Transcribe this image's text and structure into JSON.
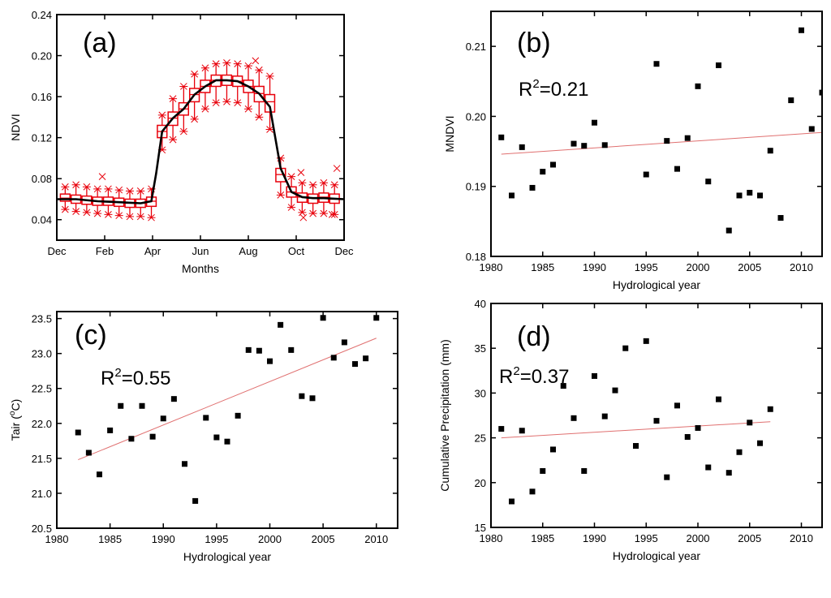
{
  "colors": {
    "frame": "#000000",
    "box": "#e8000b",
    "fit": "#e07070",
    "point": "#000000"
  },
  "chart_data": [
    {
      "id": "a",
      "type": "box",
      "panel_label": "(a)",
      "xlabel": "Months",
      "ylabel": "NDVI",
      "xlim": [
        0,
        12
      ],
      "ylim": [
        0.02,
        0.24
      ],
      "xticks": [
        0,
        2,
        4,
        6,
        8,
        10,
        12
      ],
      "xtick_labels": [
        "Dec",
        "Feb",
        "Apr",
        "Jun",
        "Aug",
        "Oct",
        "Dec"
      ],
      "yticks": [
        0.04,
        0.08,
        0.12,
        0.16,
        0.2,
        0.24
      ],
      "ytick_labels": [
        "0.04",
        "0.08",
        "0.12",
        "0.16",
        "0.20",
        "0.24"
      ],
      "boxes": [
        {
          "x": 0.35,
          "q1": 0.058,
          "q3": 0.065,
          "median": 0.061,
          "min": 0.05,
          "max": 0.072
        },
        {
          "x": 0.8,
          "q1": 0.056,
          "q3": 0.064,
          "median": 0.06,
          "min": 0.048,
          "max": 0.074
        },
        {
          "x": 1.25,
          "q1": 0.055,
          "q3": 0.063,
          "median": 0.059,
          "min": 0.047,
          "max": 0.072
        },
        {
          "x": 1.7,
          "q1": 0.054,
          "q3": 0.062,
          "median": 0.058,
          "min": 0.046,
          "max": 0.07
        },
        {
          "x": 2.15,
          "q1": 0.054,
          "q3": 0.062,
          "median": 0.058,
          "min": 0.045,
          "max": 0.07
        },
        {
          "x": 2.6,
          "q1": 0.053,
          "q3": 0.061,
          "median": 0.057,
          "min": 0.044,
          "max": 0.069
        },
        {
          "x": 3.05,
          "q1": 0.052,
          "q3": 0.06,
          "median": 0.056,
          "min": 0.043,
          "max": 0.068
        },
        {
          "x": 3.5,
          "q1": 0.052,
          "q3": 0.06,
          "median": 0.056,
          "min": 0.043,
          "max": 0.068
        },
        {
          "x": 3.95,
          "q1": 0.053,
          "q3": 0.062,
          "median": 0.058,
          "min": 0.042,
          "max": 0.07
        },
        {
          "x": 4.4,
          "q1": 0.12,
          "q3": 0.132,
          "median": 0.126,
          "min": 0.108,
          "max": 0.142
        },
        {
          "x": 4.85,
          "q1": 0.132,
          "q3": 0.145,
          "median": 0.139,
          "min": 0.118,
          "max": 0.158
        },
        {
          "x": 5.3,
          "q1": 0.142,
          "q3": 0.154,
          "median": 0.148,
          "min": 0.126,
          "max": 0.17
        },
        {
          "x": 5.75,
          "q1": 0.155,
          "q3": 0.168,
          "median": 0.162,
          "min": 0.138,
          "max": 0.182
        },
        {
          "x": 6.2,
          "q1": 0.164,
          "q3": 0.176,
          "median": 0.17,
          "min": 0.148,
          "max": 0.188
        },
        {
          "x": 6.65,
          "q1": 0.17,
          "q3": 0.181,
          "median": 0.176,
          "min": 0.154,
          "max": 0.192
        },
        {
          "x": 7.1,
          "q1": 0.171,
          "q3": 0.181,
          "median": 0.176,
          "min": 0.155,
          "max": 0.193
        },
        {
          "x": 7.55,
          "q1": 0.17,
          "q3": 0.18,
          "median": 0.175,
          "min": 0.154,
          "max": 0.192
        },
        {
          "x": 8.0,
          "q1": 0.164,
          "q3": 0.176,
          "median": 0.17,
          "min": 0.148,
          "max": 0.19
        },
        {
          "x": 8.45,
          "q1": 0.155,
          "q3": 0.17,
          "median": 0.163,
          "min": 0.14,
          "max": 0.186
        },
        {
          "x": 8.9,
          "q1": 0.145,
          "q3": 0.162,
          "median": 0.155,
          "min": 0.128,
          "max": 0.18
        },
        {
          "x": 9.35,
          "q1": 0.077,
          "q3": 0.09,
          "median": 0.084,
          "min": 0.064,
          "max": 0.1
        },
        {
          "x": 9.8,
          "q1": 0.062,
          "q3": 0.072,
          "median": 0.067,
          "min": 0.052,
          "max": 0.082
        },
        {
          "x": 10.25,
          "q1": 0.057,
          "q3": 0.066,
          "median": 0.062,
          "min": 0.047,
          "max": 0.076
        },
        {
          "x": 10.7,
          "q1": 0.056,
          "q3": 0.065,
          "median": 0.061,
          "min": 0.046,
          "max": 0.074
        },
        {
          "x": 11.15,
          "q1": 0.057,
          "q3": 0.066,
          "median": 0.062,
          "min": 0.046,
          "max": 0.076
        },
        {
          "x": 11.6,
          "q1": 0.056,
          "q3": 0.065,
          "median": 0.06,
          "min": 0.045,
          "max": 0.074
        }
      ],
      "outliers": [
        [
          1.9,
          0.082
        ],
        [
          10.2,
          0.086
        ],
        [
          11.7,
          0.09
        ],
        [
          8.3,
          0.195
        ],
        [
          10.3,
          0.042
        ],
        [
          11.5,
          0.045
        ]
      ],
      "mean_line": [
        [
          0.0,
          0.06
        ],
        [
          0.8,
          0.06
        ],
        [
          1.7,
          0.058
        ],
        [
          2.6,
          0.057
        ],
        [
          3.5,
          0.056
        ],
        [
          3.95,
          0.058
        ],
        [
          4.15,
          0.085
        ],
        [
          4.4,
          0.126
        ],
        [
          4.85,
          0.139
        ],
        [
          5.3,
          0.148
        ],
        [
          5.75,
          0.162
        ],
        [
          6.2,
          0.17
        ],
        [
          6.65,
          0.176
        ],
        [
          7.1,
          0.176
        ],
        [
          7.55,
          0.175
        ],
        [
          8.0,
          0.17
        ],
        [
          8.45,
          0.163
        ],
        [
          8.9,
          0.15
        ],
        [
          9.35,
          0.09
        ],
        [
          9.8,
          0.067
        ],
        [
          10.25,
          0.062
        ],
        [
          10.7,
          0.061
        ],
        [
          11.15,
          0.061
        ],
        [
          12.0,
          0.06
        ]
      ]
    },
    {
      "id": "b",
      "type": "scatter",
      "panel_label": "(b)",
      "r2_base": "R",
      "r2_exp": "2",
      "r2_value": "=0.21",
      "xlabel": "Hydrological year",
      "ylabel": "MNDVI",
      "xlim": [
        1980,
        2012
      ],
      "ylim": [
        0.18,
        0.215
      ],
      "xticks": [
        1980,
        1985,
        1990,
        1995,
        2000,
        2005,
        2010
      ],
      "xtick_labels": [
        "1980",
        "1985",
        "1990",
        "1995",
        "2000",
        "2005",
        "2010"
      ],
      "yticks": [
        0.18,
        0.19,
        0.2,
        0.21
      ],
      "ytick_labels": [
        "0.18",
        "0.19",
        "0.20",
        "0.21"
      ],
      "points": [
        [
          1981,
          0.197
        ],
        [
          1982,
          0.1887
        ],
        [
          1983,
          0.1956
        ],
        [
          1984,
          0.1898
        ],
        [
          1985,
          0.1921
        ],
        [
          1986,
          0.1931
        ],
        [
          1988,
          0.1961
        ],
        [
          1989,
          0.1958
        ],
        [
          1990,
          0.1991
        ],
        [
          1991,
          0.1959
        ],
        [
          1995,
          0.1917
        ],
        [
          1996,
          0.2075
        ],
        [
          1997,
          0.1965
        ],
        [
          1998,
          0.1925
        ],
        [
          1999,
          0.1969
        ],
        [
          2000,
          0.2043
        ],
        [
          2001,
          0.1907
        ],
        [
          2002,
          0.2073
        ],
        [
          2003,
          0.1837
        ],
        [
          2004,
          0.1887
        ],
        [
          2005,
          0.1891
        ],
        [
          2006,
          0.1887
        ],
        [
          2007,
          0.1951
        ],
        [
          2008,
          0.1855
        ],
        [
          2009,
          0.2023
        ],
        [
          2010,
          0.2123
        ],
        [
          2011,
          0.1982
        ],
        [
          2012,
          0.2034
        ]
      ],
      "fit": [
        [
          1981,
          0.1946
        ],
        [
          2012,
          0.1977
        ]
      ]
    },
    {
      "id": "c",
      "type": "scatter",
      "panel_label": "(c)",
      "r2_base": "R",
      "r2_exp": "2",
      "r2_value": "=0.55",
      "xlabel": "Hydrological year",
      "ylabel": "Tair (°C)",
      "ylabel_base": "Tair (",
      "ylabel_sup": "o",
      "ylabel_end": "C)",
      "xlim": [
        1980,
        2012
      ],
      "ylim": [
        20.5,
        23.6
      ],
      "xticks": [
        1980,
        1985,
        1990,
        1995,
        2000,
        2005,
        2010
      ],
      "xtick_labels": [
        "1980",
        "1985",
        "1990",
        "1995",
        "2000",
        "2005",
        "2010"
      ],
      "yticks": [
        20.5,
        21.0,
        21.5,
        22.0,
        22.5,
        23.0,
        23.5
      ],
      "ytick_labels": [
        "20.5",
        "21.0",
        "21.5",
        "22.0",
        "22.5",
        "23.0",
        "23.5"
      ],
      "points": [
        [
          1982,
          21.87
        ],
        [
          1983,
          21.58
        ],
        [
          1984,
          21.27
        ],
        [
          1985,
          21.9
        ],
        [
          1986,
          22.25
        ],
        [
          1987,
          21.78
        ],
        [
          1988,
          22.25
        ],
        [
          1989,
          21.81
        ],
        [
          1990,
          22.07
        ],
        [
          1991,
          22.35
        ],
        [
          1992,
          21.42
        ],
        [
          1993,
          20.89
        ],
        [
          1994,
          22.08
        ],
        [
          1995,
          21.8
        ],
        [
          1996,
          21.74
        ],
        [
          1997,
          22.11
        ],
        [
          1998,
          23.05
        ],
        [
          1999,
          23.04
        ],
        [
          2000,
          22.89
        ],
        [
          2001,
          23.41
        ],
        [
          2002,
          23.05
        ],
        [
          2003,
          22.39
        ],
        [
          2004,
          22.36
        ],
        [
          2005,
          23.51
        ],
        [
          2006,
          22.94
        ],
        [
          2007,
          23.16
        ],
        [
          2008,
          22.85
        ],
        [
          2009,
          22.93
        ],
        [
          2010,
          23.51
        ]
      ],
      "fit": [
        [
          1982,
          21.48
        ],
        [
          2010,
          23.22
        ]
      ]
    },
    {
      "id": "d",
      "type": "scatter",
      "panel_label": "(d)",
      "r2_base": "R",
      "r2_exp": "2",
      "r2_value": "=0.37",
      "xlabel": "Hydrological year",
      "ylabel": "Cumulative Precipitation (mm)",
      "xlim": [
        1980,
        2012
      ],
      "ylim": [
        15,
        40
      ],
      "xticks": [
        1980,
        1985,
        1990,
        1995,
        2000,
        2005,
        2010
      ],
      "xtick_labels": [
        "1980",
        "1985",
        "1990",
        "1995",
        "2000",
        "2005",
        "2010"
      ],
      "yticks": [
        15,
        20,
        25,
        30,
        35,
        40
      ],
      "ytick_labels": [
        "15",
        "20",
        "25",
        "30",
        "35",
        "40"
      ],
      "points": [
        [
          1981,
          26.0
        ],
        [
          1982,
          17.9
        ],
        [
          1983,
          25.8
        ],
        [
          1984,
          19.0
        ],
        [
          1985,
          21.3
        ],
        [
          1986,
          23.7
        ],
        [
          1987,
          30.8
        ],
        [
          1988,
          27.2
        ],
        [
          1989,
          21.3
        ],
        [
          1990,
          31.9
        ],
        [
          1991,
          27.4
        ],
        [
          1992,
          30.3
        ],
        [
          1993,
          35.0
        ],
        [
          1994,
          24.1
        ],
        [
          1995,
          35.8
        ],
        [
          1996,
          26.9
        ],
        [
          1997,
          20.6
        ],
        [
          1998,
          28.6
        ],
        [
          1999,
          25.1
        ],
        [
          2000,
          26.1
        ],
        [
          2001,
          21.7
        ],
        [
          2002,
          29.3
        ],
        [
          2003,
          21.1
        ],
        [
          2004,
          23.4
        ],
        [
          2005,
          26.7
        ],
        [
          2006,
          24.4
        ],
        [
          2007,
          28.2
        ]
      ],
      "fit": [
        [
          1981,
          25.0
        ],
        [
          2007,
          26.8
        ]
      ]
    }
  ]
}
